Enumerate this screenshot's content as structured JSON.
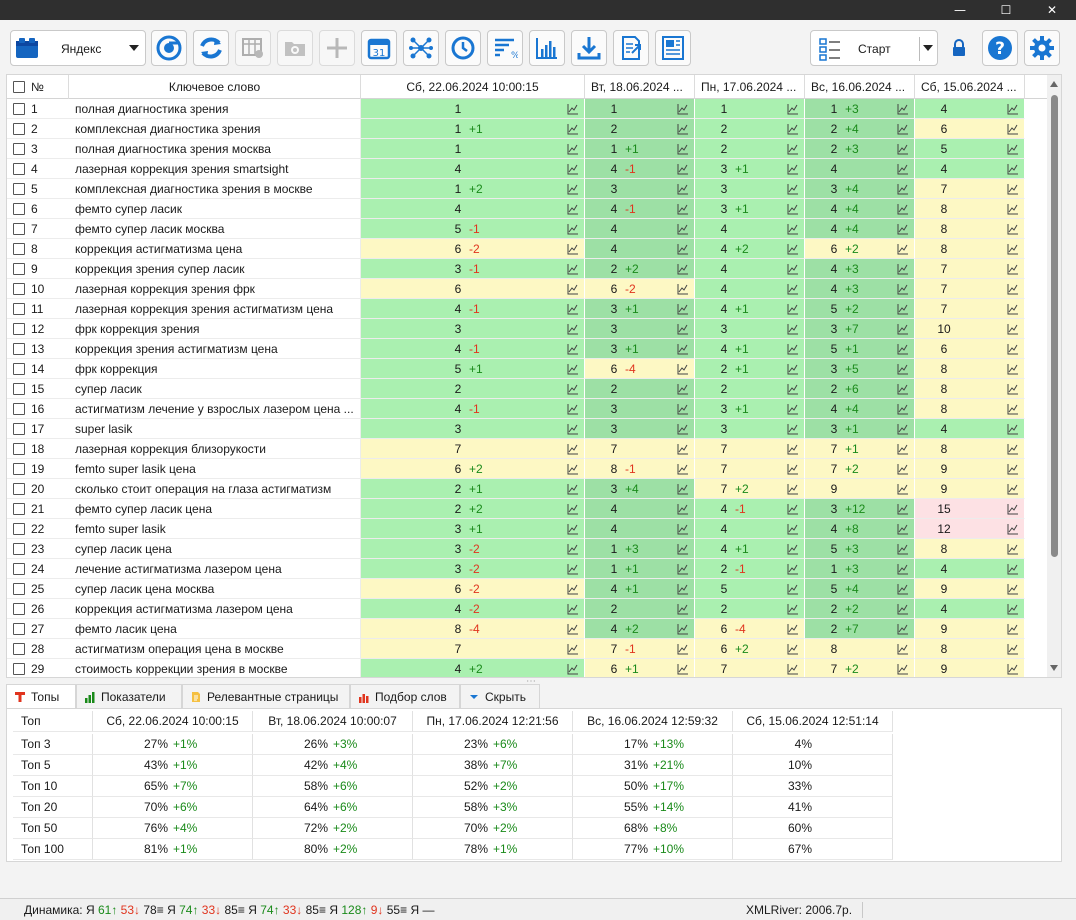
{
  "window": {
    "minimize": "—",
    "maximize": "☐",
    "close": "✕"
  },
  "toolbar": {
    "engine": "Яндекс",
    "start_label": "Старт"
  },
  "grid": {
    "headers": {
      "num": "№",
      "keyword": "Ключевое слово"
    },
    "dates": [
      "Сб, 22.06.2024 10:00:15",
      "Вт, 18.06.2024 ...",
      "Пн, 17.06.2024 ...",
      "Вс, 16.06.2024 ...",
      "Сб, 15.06.2024 ..."
    ],
    "colors": {
      "green_dark": "#9de0a5",
      "green_light": "#aaf0b0",
      "yellow": "#fdf8c4",
      "pink": "#fde1e4",
      "up": "#1a8a1a",
      "down": "#e0341e"
    },
    "rows": [
      {
        "n": "1",
        "kw": "полная диагностика зрения",
        "c": [
          [
            "1",
            "",
            "g"
          ],
          [
            "1",
            "",
            "g"
          ],
          [
            "1",
            "",
            "g"
          ],
          [
            "1",
            "+3",
            "g"
          ],
          [
            "4",
            "",
            "g"
          ]
        ]
      },
      {
        "n": "2",
        "kw": "комплексная диагностика зрения",
        "c": [
          [
            "1",
            "+1",
            "g"
          ],
          [
            "2",
            "",
            "g"
          ],
          [
            "2",
            "",
            "g"
          ],
          [
            "2",
            "+4",
            "g"
          ],
          [
            "6",
            "",
            "y"
          ]
        ]
      },
      {
        "n": "3",
        "kw": "полная диагностика зрения москва",
        "c": [
          [
            "1",
            "",
            "g"
          ],
          [
            "1",
            "+1",
            "g"
          ],
          [
            "2",
            "",
            "g"
          ],
          [
            "2",
            "+3",
            "g"
          ],
          [
            "5",
            "",
            "g"
          ]
        ]
      },
      {
        "n": "4",
        "kw": "лазерная коррекция зрения smartsight",
        "c": [
          [
            "4",
            "",
            "g"
          ],
          [
            "4",
            "-1",
            "g"
          ],
          [
            "3",
            "+1",
            "g"
          ],
          [
            "4",
            "",
            "g"
          ],
          [
            "4",
            "",
            "g"
          ]
        ]
      },
      {
        "n": "5",
        "kw": "комплексная диагностика зрения в москве",
        "c": [
          [
            "1",
            "+2",
            "g"
          ],
          [
            "3",
            "",
            "g"
          ],
          [
            "3",
            "",
            "g"
          ],
          [
            "3",
            "+4",
            "g"
          ],
          [
            "7",
            "",
            "y"
          ]
        ]
      },
      {
        "n": "6",
        "kw": "фемто супер ласик",
        "c": [
          [
            "4",
            "",
            "g"
          ],
          [
            "4",
            "-1",
            "g"
          ],
          [
            "3",
            "+1",
            "g"
          ],
          [
            "4",
            "+4",
            "g"
          ],
          [
            "8",
            "",
            "y"
          ]
        ]
      },
      {
        "n": "7",
        "kw": "фемто супер ласик москва",
        "c": [
          [
            "5",
            "-1",
            "g"
          ],
          [
            "4",
            "",
            "g"
          ],
          [
            "4",
            "",
            "g"
          ],
          [
            "4",
            "+4",
            "g"
          ],
          [
            "8",
            "",
            "y"
          ]
        ]
      },
      {
        "n": "8",
        "kw": "коррекция астигматизма цена",
        "c": [
          [
            "6",
            "-2",
            "y"
          ],
          [
            "4",
            "",
            "g"
          ],
          [
            "4",
            "+2",
            "g"
          ],
          [
            "6",
            "+2",
            "y"
          ],
          [
            "8",
            "",
            "y"
          ]
        ]
      },
      {
        "n": "9",
        "kw": "коррекция зрения супер ласик",
        "c": [
          [
            "3",
            "-1",
            "g"
          ],
          [
            "2",
            "+2",
            "g"
          ],
          [
            "4",
            "",
            "g"
          ],
          [
            "4",
            "+3",
            "g"
          ],
          [
            "7",
            "",
            "y"
          ]
        ]
      },
      {
        "n": "10",
        "kw": "лазерная коррекция зрения фрк",
        "c": [
          [
            "6",
            "",
            "y"
          ],
          [
            "6",
            "-2",
            "y"
          ],
          [
            "4",
            "",
            "g"
          ],
          [
            "4",
            "+3",
            "g"
          ],
          [
            "7",
            "",
            "y"
          ]
        ]
      },
      {
        "n": "11",
        "kw": "лазерная коррекция зрения астигматизм цена",
        "c": [
          [
            "4",
            "-1",
            "g"
          ],
          [
            "3",
            "+1",
            "g"
          ],
          [
            "4",
            "+1",
            "g"
          ],
          [
            "5",
            "+2",
            "g"
          ],
          [
            "7",
            "",
            "y"
          ]
        ]
      },
      {
        "n": "12",
        "kw": "фрк коррекция зрения",
        "c": [
          [
            "3",
            "",
            "g"
          ],
          [
            "3",
            "",
            "g"
          ],
          [
            "3",
            "",
            "g"
          ],
          [
            "3",
            "+7",
            "g"
          ],
          [
            "10",
            "",
            "y"
          ]
        ]
      },
      {
        "n": "13",
        "kw": "коррекция зрения астигматизм цена",
        "c": [
          [
            "4",
            "-1",
            "g"
          ],
          [
            "3",
            "+1",
            "g"
          ],
          [
            "4",
            "+1",
            "g"
          ],
          [
            "5",
            "+1",
            "g"
          ],
          [
            "6",
            "",
            "y"
          ]
        ]
      },
      {
        "n": "14",
        "kw": "фрк коррекция",
        "c": [
          [
            "5",
            "+1",
            "g"
          ],
          [
            "6",
            "-4",
            "y"
          ],
          [
            "2",
            "+1",
            "g"
          ],
          [
            "3",
            "+5",
            "g"
          ],
          [
            "8",
            "",
            "y"
          ]
        ]
      },
      {
        "n": "15",
        "kw": "супер ласик",
        "c": [
          [
            "2",
            "",
            "g"
          ],
          [
            "2",
            "",
            "g"
          ],
          [
            "2",
            "",
            "g"
          ],
          [
            "2",
            "+6",
            "g"
          ],
          [
            "8",
            "",
            "y"
          ]
        ]
      },
      {
        "n": "16",
        "kw": "астигматизм лечение у взрослых лазером цена ...",
        "c": [
          [
            "4",
            "-1",
            "g"
          ],
          [
            "3",
            "",
            "g"
          ],
          [
            "3",
            "+1",
            "g"
          ],
          [
            "4",
            "+4",
            "g"
          ],
          [
            "8",
            "",
            "y"
          ]
        ]
      },
      {
        "n": "17",
        "kw": "super lasik",
        "c": [
          [
            "3",
            "",
            "g"
          ],
          [
            "3",
            "",
            "g"
          ],
          [
            "3",
            "",
            "g"
          ],
          [
            "3",
            "+1",
            "g"
          ],
          [
            "4",
            "",
            "g"
          ]
        ]
      },
      {
        "n": "18",
        "kw": "лазерная коррекция близорукости",
        "c": [
          [
            "7",
            "",
            "y"
          ],
          [
            "7",
            "",
            "y"
          ],
          [
            "7",
            "",
            "y"
          ],
          [
            "7",
            "+1",
            "y"
          ],
          [
            "8",
            "",
            "y"
          ]
        ]
      },
      {
        "n": "19",
        "kw": "femto super lasik цена",
        "c": [
          [
            "6",
            "+2",
            "y"
          ],
          [
            "8",
            "-1",
            "y"
          ],
          [
            "7",
            "",
            "y"
          ],
          [
            "7",
            "+2",
            "y"
          ],
          [
            "9",
            "",
            "y"
          ]
        ]
      },
      {
        "n": "20",
        "kw": "сколько стоит операция на глаза астигматизм",
        "c": [
          [
            "2",
            "+1",
            "g"
          ],
          [
            "3",
            "+4",
            "g"
          ],
          [
            "7",
            "+2",
            "y"
          ],
          [
            "9",
            "",
            "y"
          ],
          [
            "9",
            "",
            "y"
          ]
        ]
      },
      {
        "n": "21",
        "kw": "фемто супер ласик цена",
        "c": [
          [
            "2",
            "+2",
            "g"
          ],
          [
            "4",
            "",
            "g"
          ],
          [
            "4",
            "-1",
            "g"
          ],
          [
            "3",
            "+12",
            "g"
          ],
          [
            "15",
            "",
            "p"
          ]
        ]
      },
      {
        "n": "22",
        "kw": "femto super lasik",
        "c": [
          [
            "3",
            "+1",
            "g"
          ],
          [
            "4",
            "",
            "g"
          ],
          [
            "4",
            "",
            "g"
          ],
          [
            "4",
            "+8",
            "g"
          ],
          [
            "12",
            "",
            "p"
          ]
        ]
      },
      {
        "n": "23",
        "kw": "супер ласик цена",
        "c": [
          [
            "3",
            "-2",
            "g"
          ],
          [
            "1",
            "+3",
            "g"
          ],
          [
            "4",
            "+1",
            "g"
          ],
          [
            "5",
            "+3",
            "g"
          ],
          [
            "8",
            "",
            "y"
          ]
        ]
      },
      {
        "n": "24",
        "kw": "лечение астигматизма лазером цена",
        "c": [
          [
            "3",
            "-2",
            "g"
          ],
          [
            "1",
            "+1",
            "g"
          ],
          [
            "2",
            "-1",
            "g"
          ],
          [
            "1",
            "+3",
            "g"
          ],
          [
            "4",
            "",
            "g"
          ]
        ]
      },
      {
        "n": "25",
        "kw": "супер ласик цена москва",
        "c": [
          [
            "6",
            "-2",
            "y"
          ],
          [
            "4",
            "+1",
            "g"
          ],
          [
            "5",
            "",
            "g"
          ],
          [
            "5",
            "+4",
            "g"
          ],
          [
            "9",
            "",
            "y"
          ]
        ]
      },
      {
        "n": "26",
        "kw": "коррекция астигматизма лазером цена",
        "c": [
          [
            "4",
            "-2",
            "g"
          ],
          [
            "2",
            "",
            "g"
          ],
          [
            "2",
            "",
            "g"
          ],
          [
            "2",
            "+2",
            "g"
          ],
          [
            "4",
            "",
            "g"
          ]
        ]
      },
      {
        "n": "27",
        "kw": "фемто ласик цена",
        "c": [
          [
            "8",
            "-4",
            "y"
          ],
          [
            "4",
            "+2",
            "g"
          ],
          [
            "6",
            "-4",
            "y"
          ],
          [
            "2",
            "+7",
            "g"
          ],
          [
            "9",
            "",
            "y"
          ]
        ]
      },
      {
        "n": "28",
        "kw": "астигматизм операция цена в москве",
        "c": [
          [
            "7",
            "",
            "y"
          ],
          [
            "7",
            "-1",
            "y"
          ],
          [
            "6",
            "+2",
            "y"
          ],
          [
            "8",
            "",
            "y"
          ],
          [
            "8",
            "",
            "y"
          ]
        ]
      },
      {
        "n": "29",
        "kw": "стоимость коррекции зрения в москве",
        "c": [
          [
            "4",
            "+2",
            "g"
          ],
          [
            "6",
            "+1",
            "y"
          ],
          [
            "7",
            "",
            "y"
          ],
          [
            "7",
            "+2",
            "y"
          ],
          [
            "9",
            "",
            "y"
          ]
        ]
      }
    ]
  },
  "tabs": [
    {
      "label": "Топы",
      "icon": "tops-icon"
    },
    {
      "label": "Показатели",
      "icon": "bars-icon"
    },
    {
      "label": "Релевантные страницы",
      "icon": "page-icon"
    },
    {
      "label": "Подбор слов",
      "icon": "words-icon"
    },
    {
      "label": "Скрыть",
      "icon": "hide-icon"
    }
  ],
  "tops": {
    "header": [
      "Топ",
      "Сб, 22.06.2024 10:00:15",
      "Вт, 18.06.2024 10:00:07",
      "Пн, 17.06.2024 12:21:56",
      "Вс, 16.06.2024 12:59:32",
      "Сб, 15.06.2024 12:51:14"
    ],
    "rows": [
      {
        "name": "Топ 3",
        "v": [
          [
            "27%",
            "+1%"
          ],
          [
            "26%",
            "+3%"
          ],
          [
            "23%",
            "+6%"
          ],
          [
            "17%",
            "+13%"
          ],
          [
            "4%",
            ""
          ]
        ]
      },
      {
        "name": "Топ 5",
        "v": [
          [
            "43%",
            "+1%"
          ],
          [
            "42%",
            "+4%"
          ],
          [
            "38%",
            "+7%"
          ],
          [
            "31%",
            "+21%"
          ],
          [
            "10%",
            ""
          ]
        ]
      },
      {
        "name": "Топ 10",
        "v": [
          [
            "65%",
            "+7%"
          ],
          [
            "58%",
            "+6%"
          ],
          [
            "52%",
            "+2%"
          ],
          [
            "50%",
            "+17%"
          ],
          [
            "33%",
            ""
          ]
        ]
      },
      {
        "name": "Топ 20",
        "v": [
          [
            "70%",
            "+6%"
          ],
          [
            "64%",
            "+6%"
          ],
          [
            "58%",
            "+3%"
          ],
          [
            "55%",
            "+14%"
          ],
          [
            "41%",
            ""
          ]
        ]
      },
      {
        "name": "Топ 50",
        "v": [
          [
            "76%",
            "+4%"
          ],
          [
            "72%",
            "+2%"
          ],
          [
            "70%",
            "+2%"
          ],
          [
            "68%",
            "+8%"
          ],
          [
            "60%",
            ""
          ]
        ]
      },
      {
        "name": "Топ 100",
        "v": [
          [
            "81%",
            "+1%"
          ],
          [
            "80%",
            "+2%"
          ],
          [
            "78%",
            "+1%"
          ],
          [
            "77%",
            "+10%"
          ],
          [
            "67%",
            ""
          ]
        ]
      }
    ]
  },
  "status": {
    "label": "Динамика:",
    "groups": [
      {
        "engine": "Я",
        "up": "61↑",
        "down": "53↓",
        "eq": "78≡"
      },
      {
        "engine": "Я",
        "up": "74↑",
        "down": "33↓",
        "eq": "85≡"
      },
      {
        "engine": "Я",
        "up": "74↑",
        "down": "33↓",
        "eq": "85≡"
      },
      {
        "engine": "Я",
        "up": "128↑",
        "down": "9↓",
        "eq": "55≡"
      }
    ],
    "tail": "Я —",
    "xmlriver": "XMLRiver: 2006.7р."
  }
}
